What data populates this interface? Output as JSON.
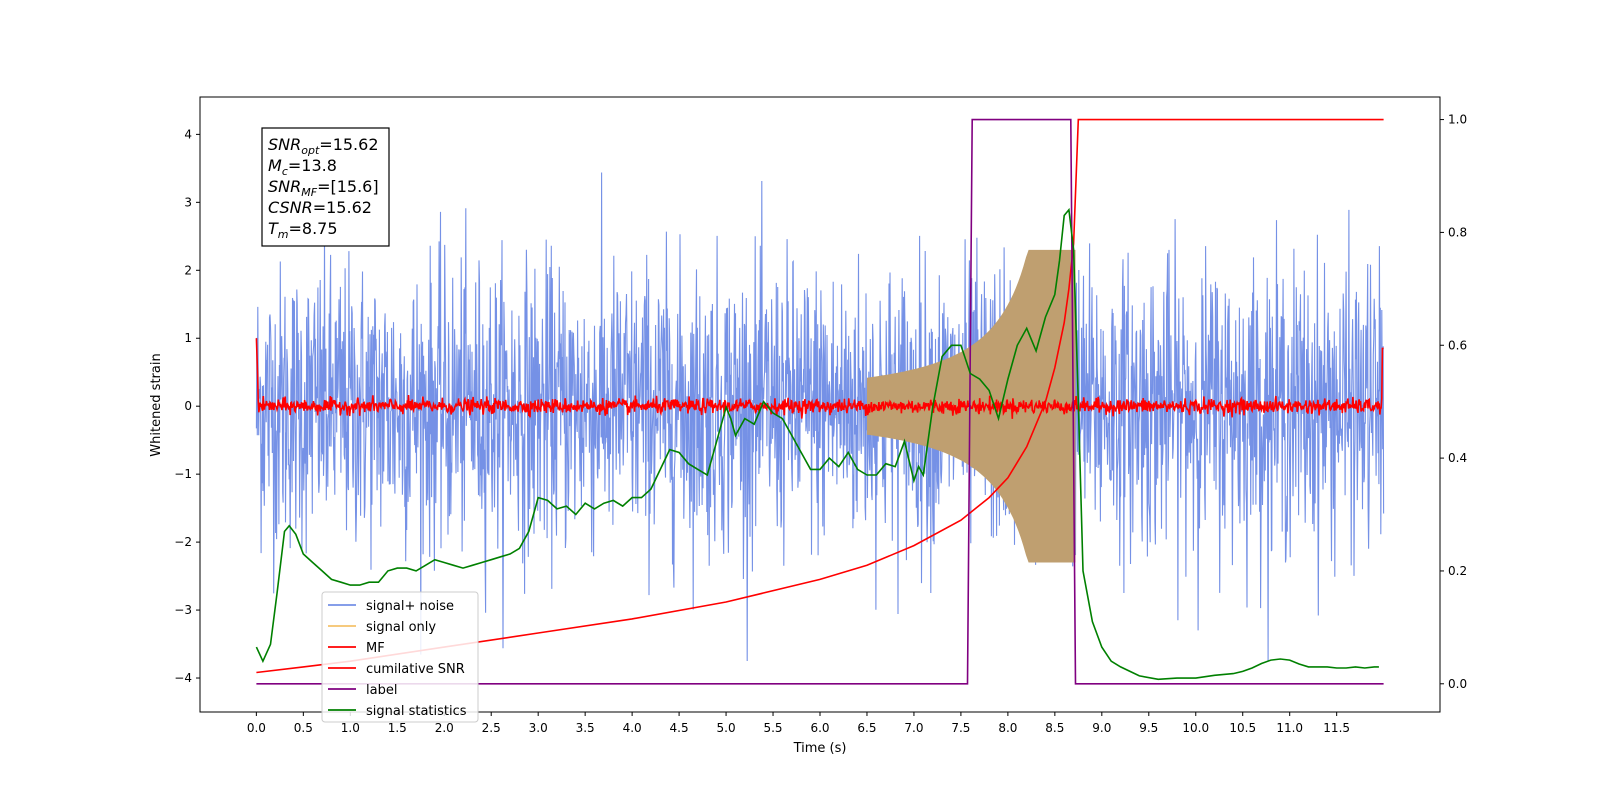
{
  "chart_data": {
    "type": "line",
    "xlabel": "Time (s)",
    "ylabel_left": "Whitened strain",
    "ylabel_right": "",
    "xlim": [
      -0.6,
      12.6
    ],
    "ylim_left": [
      -4.5,
      4.55
    ],
    "ylim_right": [
      -0.05,
      1.04
    ],
    "x_ticks": [
      "0.0",
      "0.5",
      "1.0",
      "1.5",
      "2.0",
      "2.5",
      "3.0",
      "3.5",
      "4.0",
      "4.5",
      "5.0",
      "5.5",
      "6.0",
      "6.5",
      "7.0",
      "7.5",
      "8.0",
      "8.5",
      "9.0",
      "9.5",
      "10.0",
      "10.5",
      "11.0",
      "11.5"
    ],
    "y_left_ticks": [
      "4",
      "3",
      "2",
      "1",
      "0",
      "−1",
      "−2",
      "−3",
      "−4"
    ],
    "y_right_ticks": [
      "1.0",
      "0.8",
      "0.6",
      "0.4",
      "0.2",
      "0.0"
    ],
    "grid": false,
    "legend_position": "lower-left",
    "annotation": {
      "lines": [
        {
          "name": "SNR",
          "sub": "opt",
          "value": "=15.62"
        },
        {
          "name": "M",
          "sub": "c",
          "value": "=13.8"
        },
        {
          "name": "SNR",
          "sub": "MF",
          "value": "=[15.6]"
        },
        {
          "name": "CSNR",
          "sub": "",
          "value": "=15.62"
        },
        {
          "name": "T",
          "sub": "m",
          "value": "=8.75"
        }
      ]
    },
    "series": [
      {
        "name": "signal+ noise",
        "color": "#7591e6",
        "axis": "left",
        "style": "noise band, approx ±2.5 typical, peaks to ±4.2, t 0–12"
      },
      {
        "name": "signal only",
        "color": "#f5c36b",
        "axis": "left",
        "style": "chirp envelope growing to ±2.3 at t≈8.7 s, ends 8.75 s"
      },
      {
        "name": "MF",
        "color": "#ff0000",
        "axis": "left",
        "style": "noise around 0, amplitude ≈0.15"
      },
      {
        "name": "cumilative SNR",
        "color": "#ff0000",
        "axis": "right",
        "x": [
          0.0,
          0.5,
          1.0,
          2.0,
          3.0,
          4.0,
          5.0,
          6.0,
          6.5,
          7.0,
          7.5,
          7.8,
          8.0,
          8.2,
          8.4,
          8.5,
          8.6,
          8.65,
          8.7,
          8.75,
          12.0
        ],
        "y": [
          0.02,
          0.03,
          0.04,
          0.065,
          0.09,
          0.115,
          0.145,
          0.185,
          0.21,
          0.245,
          0.29,
          0.33,
          0.365,
          0.42,
          0.5,
          0.56,
          0.64,
          0.7,
          0.78,
          1.0,
          1.0
        ]
      },
      {
        "name": "label",
        "color": "#800080",
        "axis": "right",
        "x": [
          0.0,
          7.57,
          7.62,
          8.67,
          8.72,
          12.0
        ],
        "y": [
          0.0,
          0.0,
          1.0,
          1.0,
          0.0,
          0.0
        ]
      },
      {
        "name": "signal statistics",
        "color": "#008000",
        "axis": "right",
        "x": [
          0.0,
          0.07,
          0.15,
          0.22,
          0.3,
          0.35,
          0.42,
          0.5,
          0.6,
          0.7,
          0.8,
          0.9,
          1.0,
          1.1,
          1.2,
          1.3,
          1.4,
          1.5,
          1.6,
          1.7,
          1.8,
          1.9,
          2.0,
          2.1,
          2.2,
          2.3,
          2.4,
          2.5,
          2.6,
          2.7,
          2.8,
          2.9,
          3.0,
          3.1,
          3.2,
          3.3,
          3.4,
          3.5,
          3.6,
          3.7,
          3.8,
          3.9,
          4.0,
          4.1,
          4.2,
          4.3,
          4.4,
          4.5,
          4.6,
          4.7,
          4.8,
          4.9,
          5.0,
          5.05,
          5.1,
          5.2,
          5.3,
          5.4,
          5.5,
          5.6,
          5.7,
          5.8,
          5.9,
          6.0,
          6.1,
          6.2,
          6.3,
          6.4,
          6.5,
          6.6,
          6.7,
          6.8,
          6.9,
          7.0,
          7.05,
          7.1,
          7.2,
          7.3,
          7.4,
          7.5,
          7.6,
          7.7,
          7.8,
          7.9,
          8.0,
          8.1,
          8.2,
          8.3,
          8.4,
          8.5,
          8.55,
          8.6,
          8.65,
          8.7,
          8.75,
          8.8,
          8.9,
          9.0,
          9.1,
          9.2,
          9.3,
          9.4,
          9.6,
          9.8,
          10.0,
          10.2,
          10.4,
          10.5,
          10.6,
          10.7,
          10.8,
          10.9,
          11.0,
          11.1,
          11.2,
          11.3,
          11.4,
          11.5,
          11.6,
          11.7,
          11.8,
          11.9,
          11.95
        ],
        "y": [
          0.065,
          0.04,
          0.07,
          0.16,
          0.27,
          0.28,
          0.265,
          0.23,
          0.215,
          0.2,
          0.185,
          0.18,
          0.175,
          0.175,
          0.18,
          0.18,
          0.2,
          0.205,
          0.205,
          0.2,
          0.21,
          0.22,
          0.215,
          0.21,
          0.205,
          0.21,
          0.215,
          0.22,
          0.225,
          0.23,
          0.24,
          0.27,
          0.33,
          0.325,
          0.31,
          0.315,
          0.3,
          0.32,
          0.31,
          0.32,
          0.325,
          0.315,
          0.33,
          0.33,
          0.345,
          0.38,
          0.415,
          0.41,
          0.39,
          0.38,
          0.37,
          0.43,
          0.49,
          0.47,
          0.44,
          0.47,
          0.46,
          0.5,
          0.48,
          0.47,
          0.44,
          0.41,
          0.38,
          0.38,
          0.4,
          0.385,
          0.41,
          0.38,
          0.37,
          0.37,
          0.39,
          0.385,
          0.43,
          0.36,
          0.385,
          0.37,
          0.49,
          0.58,
          0.6,
          0.6,
          0.55,
          0.54,
          0.52,
          0.47,
          0.54,
          0.6,
          0.63,
          0.59,
          0.65,
          0.69,
          0.75,
          0.83,
          0.84,
          0.77,
          0.5,
          0.2,
          0.11,
          0.065,
          0.04,
          0.03,
          0.022,
          0.014,
          0.008,
          0.01,
          0.01,
          0.015,
          0.018,
          0.022,
          0.028,
          0.036,
          0.042,
          0.044,
          0.042,
          0.035,
          0.03,
          0.03,
          0.03,
          0.028,
          0.028,
          0.03,
          0.028,
          0.03,
          0.03
        ]
      }
    ]
  }
}
